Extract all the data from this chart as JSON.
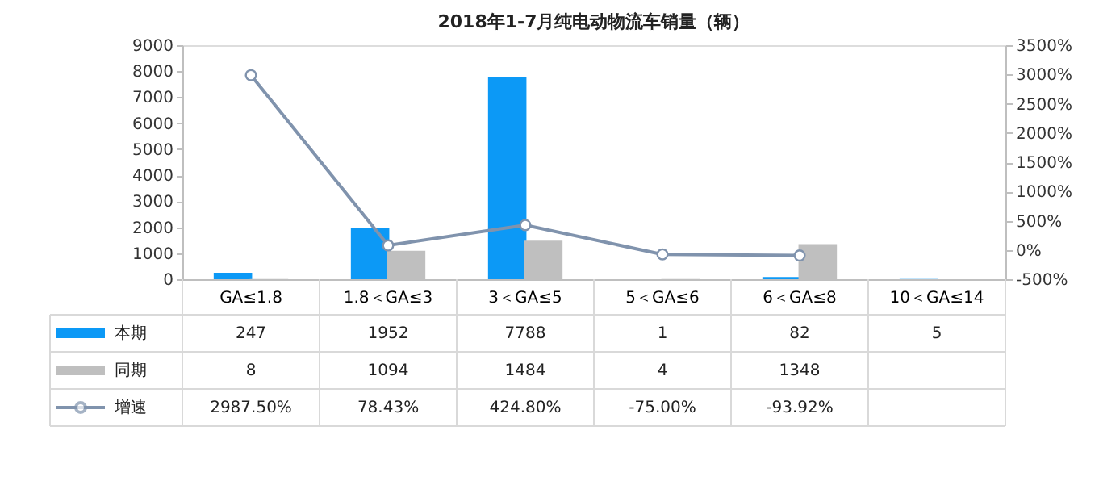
{
  "chart_data": {
    "type": "bar",
    "title": "2018年1-7月纯电动物流车销量（辆）",
    "categories": [
      "GA≤1.8",
      "1.8＜GA≤3",
      "3＜GA≤5",
      "5＜GA≤6",
      "6＜GA≤8",
      "10＜GA≤14"
    ],
    "series": [
      {
        "name": "本期",
        "color": "#0c99f6",
        "values": [
          247,
          1952,
          7788,
          1,
          82,
          5
        ]
      },
      {
        "name": "同期",
        "color": "#bfbfbf",
        "values": [
          8,
          1094,
          1484,
          4,
          1348,
          null
        ]
      },
      {
        "name": "增速",
        "type": "line",
        "axis": "y2",
        "color": "#8093ad",
        "values": [
          2987.5,
          78.43,
          424.8,
          -75,
          -93.92,
          null
        ],
        "value_labels": [
          "2987.50%",
          "78.43%",
          "424.80%",
          "-75.00%",
          "-93.92%",
          null
        ]
      }
    ],
    "ylim": [
      0,
      9000
    ],
    "yticks": [
      0,
      1000,
      2000,
      3000,
      4000,
      5000,
      6000,
      7000,
      8000,
      9000
    ],
    "y2lim": [
      -500,
      3500
    ],
    "y2ticks": [
      {
        "value": -500,
        "label": "-500%"
      },
      {
        "value": 0,
        "label": "0%"
      },
      {
        "value": 500,
        "label": "500%"
      },
      {
        "value": 1000,
        "label": "1000%"
      },
      {
        "value": 1500,
        "label": "1500%"
      },
      {
        "value": 2000,
        "label": "2000%"
      },
      {
        "value": 2500,
        "label": "2500%"
      },
      {
        "value": 3000,
        "label": "3000%"
      },
      {
        "value": 3500,
        "label": "3500%"
      }
    ],
    "data_labels": true,
    "legend": "bottom left",
    "grid": false,
    "marker": "circle"
  }
}
